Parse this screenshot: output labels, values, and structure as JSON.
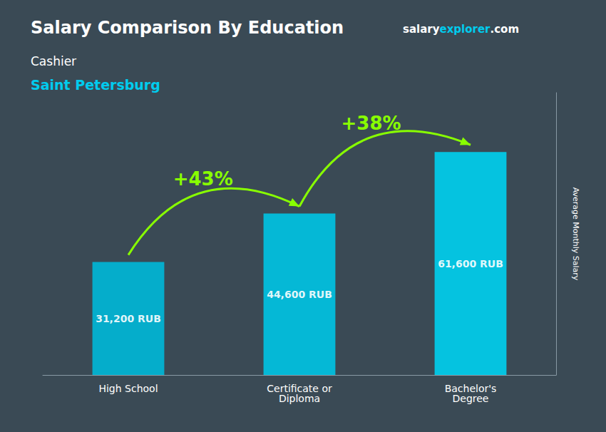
{
  "chart_data": {
    "type": "bar",
    "title": "Salary Comparison By Education",
    "subtitle": "Cashier",
    "ylabel": "Average Monthly Salary",
    "categories": [
      "High School",
      "Certificate or\nDiploma",
      "Bachelor's\nDegree"
    ],
    "values": [
      31200,
      44600,
      61600
    ],
    "value_labels": [
      "31,200 RUB",
      "44,600 RUB",
      "61,600 RUB"
    ],
    "data_labels": true,
    "colors": [
      "#00b8d8",
      "#00c4e4",
      "#00d0f0"
    ],
    "ylim": [
      0,
      78000
    ],
    "tick_labels": "x",
    "grid": false,
    "annotations": [
      {
        "text": "Saint Petersburg",
        "color": "#00ccee"
      },
      {
        "text": "salary",
        "color": "#ffffff"
      },
      {
        "text": "explorer",
        "color": "#00ccee"
      },
      {
        "text": ".com",
        "color": "#ffffff"
      },
      {
        "text": "+43%",
        "color": "#88ff00"
      },
      {
        "text": "+38%",
        "color": "#88ff00"
      }
    ]
  }
}
